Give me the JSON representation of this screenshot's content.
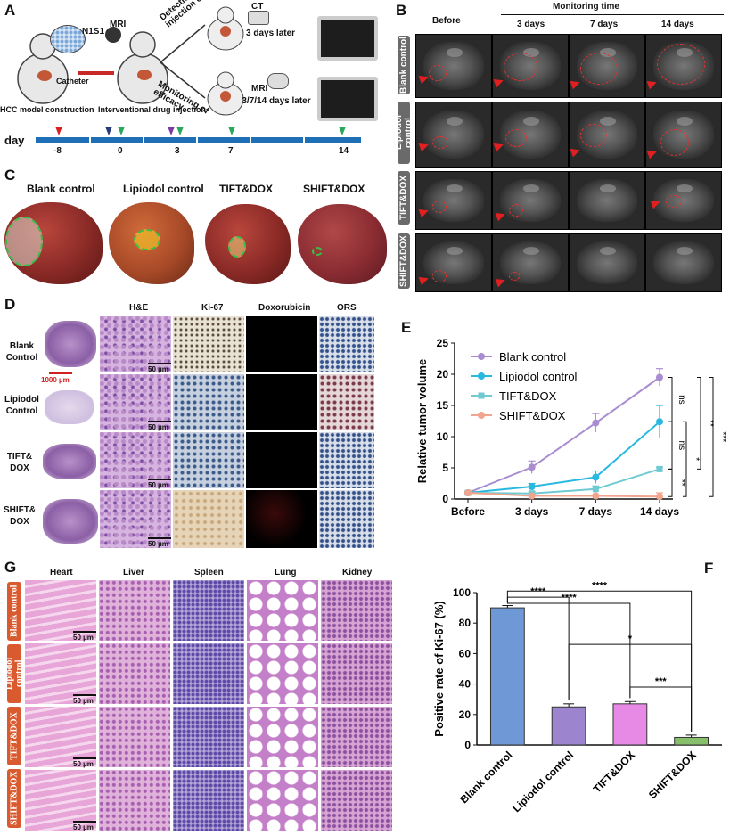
{
  "panels": {
    "A": "A",
    "B": "B",
    "C": "C",
    "D": "D",
    "E": "E",
    "F": "F",
    "G": "G"
  },
  "panelA": {
    "cell": "N1S1",
    "mri": "MRI",
    "detection": "Detection of injection effect",
    "monitoring": "Monitoring of efficacy",
    "ct": "CT",
    "ct_later": "3 days later",
    "mri2": "MRI",
    "mri_later": "3/7/14 days later",
    "catheter": "Catheter",
    "hcc": "HCC model construction",
    "interventional": "Interventional drug injection",
    "day_label": "day",
    "days": [
      "-8",
      "0",
      "3",
      "7",
      "14"
    ]
  },
  "panelB": {
    "before": "Before",
    "monitoring_time": "Monitoring time",
    "cols": [
      "3 days",
      "7 days",
      "14 days"
    ],
    "rows": [
      "Blank control",
      "Lipiodol control",
      "TIFT&DOX",
      "SHIFT&DOX"
    ]
  },
  "panelC": {
    "labels": [
      "Blank control",
      "Lipiodol control",
      "TIFT&DOX",
      "SHIFT&DOX"
    ]
  },
  "panelD": {
    "cols": [
      "H&E",
      "Ki-67",
      "Doxorubicin",
      "ORS"
    ],
    "rows": [
      "Blank Control",
      "Lipiodol Control",
      "TIFT& DOX",
      "SHIFT& DOX"
    ],
    "scale_big": "1000 µm",
    "scale_small": "50 µm"
  },
  "panelG": {
    "cols": [
      "Heart",
      "Liver",
      "Spleen",
      "Lung",
      "Kidney"
    ],
    "rows": [
      "Blank control",
      "Lipiodol control",
      "TIFT&DOX",
      "SHIFT&DOX"
    ],
    "scale": "50 µm"
  },
  "colors": {
    "blank": "#a98dd1",
    "lipiodol": "#29b8e0",
    "tift": "#6fcad1",
    "shift": "#f1a48e",
    "barBlank": "#6f98d6",
    "barLip": "#9c84cf",
    "barTift": "#e68ae6",
    "barShift": "#86c06a"
  },
  "chart_data": [
    {
      "id": "E",
      "type": "line",
      "ylabel": "Relative tumor volume",
      "xlabel": "",
      "categories": [
        "Before",
        "3 days",
        "7 days",
        "14 days"
      ],
      "ylim": [
        0,
        25
      ],
      "yticks": [
        0,
        5,
        10,
        15,
        20,
        25
      ],
      "legend_position": "top-left",
      "series": [
        {
          "name": "Blank control",
          "values": [
            1,
            5.1,
            12.2,
            19.5
          ],
          "err": [
            0.2,
            1.0,
            1.5,
            1.4
          ]
        },
        {
          "name": "Lipiodol control",
          "values": [
            1,
            2.0,
            3.5,
            12.4
          ],
          "err": [
            0.2,
            0.5,
            1.0,
            2.6
          ]
        },
        {
          "name": "TIFT&DOX",
          "values": [
            1,
            0.9,
            1.6,
            4.8
          ],
          "err": [
            0.1,
            0.3,
            0.5,
            0.3
          ]
        },
        {
          "name": "SHIFT&DOX",
          "values": [
            1,
            0.5,
            0.5,
            0.4
          ],
          "err": [
            0.1,
            0.2,
            0.2,
            0.6
          ]
        }
      ],
      "significance": [
        "ns",
        "ns",
        "**",
        "*",
        "**",
        "***"
      ]
    },
    {
      "id": "F",
      "type": "bar",
      "ylabel": "Positive rate of Ki-67 (%)",
      "xlabel": "",
      "categories": [
        "Blank control",
        "Lipiodol control",
        "TIFT&DOX",
        "SHIFT&DOX"
      ],
      "values": [
        90,
        25,
        27,
        5
      ],
      "err": [
        1.5,
        2.0,
        1.5,
        1.5
      ],
      "ylim": [
        0,
        100
      ],
      "yticks": [
        0,
        20,
        40,
        60,
        80,
        100
      ],
      "significance": [
        "****",
        "****",
        "****",
        "*",
        "***"
      ]
    }
  ]
}
